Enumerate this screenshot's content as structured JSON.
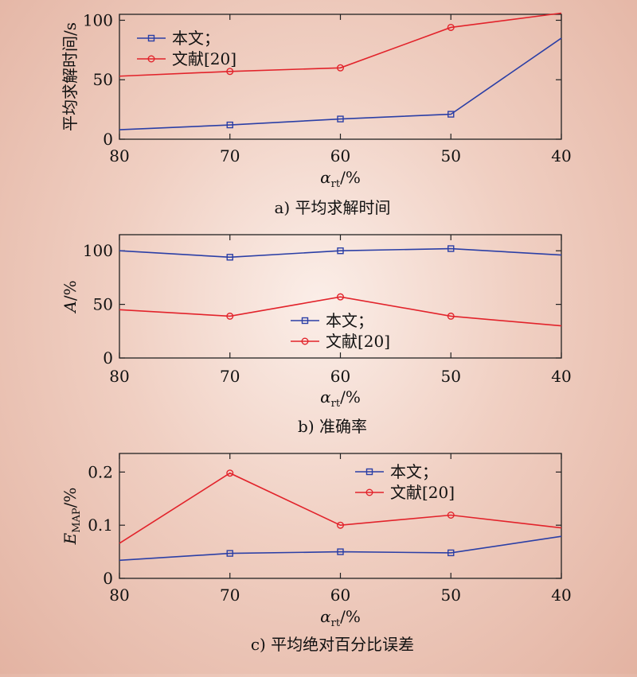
{
  "chart_data": [
    {
      "type": "line",
      "ylabel": "平均求解时间/s",
      "xlabel_base": "α",
      "xlabel_sub": "rt",
      "xlabel_unit": "/%",
      "caption": "a) 平均求解时间",
      "x": [
        80,
        70,
        60,
        50,
        40
      ],
      "xlim": [
        80,
        40
      ],
      "ylim": [
        0,
        105
      ],
      "yticks": [
        0,
        50,
        100
      ],
      "legend_position": "top-left",
      "series": [
        {
          "name": "本文；",
          "color": "#2b3fa6",
          "marker": "square",
          "values": [
            8,
            12,
            17,
            21,
            85
          ]
        },
        {
          "name": "文献[20]",
          "color": "#e2232b",
          "marker": "circle",
          "values": [
            53,
            57,
            60,
            94,
            106
          ]
        }
      ]
    },
    {
      "type": "line",
      "ylabel_base": "A",
      "ylabel_unit": "/%",
      "xlabel_base": "α",
      "xlabel_sub": "rt",
      "xlabel_unit": "/%",
      "caption": "b) 准确率",
      "x": [
        80,
        70,
        60,
        50,
        40
      ],
      "xlim": [
        80,
        40
      ],
      "ylim": [
        0,
        115
      ],
      "yticks": [
        0,
        50,
        100
      ],
      "legend_position": "center",
      "series": [
        {
          "name": "本文；",
          "color": "#2b3fa6",
          "marker": "square",
          "values": [
            100,
            94,
            100,
            102,
            96
          ]
        },
        {
          "name": "文献[20]",
          "color": "#e2232b",
          "marker": "circle",
          "values": [
            45,
            39,
            57,
            39,
            30
          ]
        }
      ]
    },
    {
      "type": "line",
      "ylabel_base": "E",
      "ylabel_sub": "MAP",
      "ylabel_unit": "/%",
      "xlabel_base": "α",
      "xlabel_sub": "rt",
      "xlabel_unit": "/%",
      "caption": "c) 平均绝对百分比误差",
      "x": [
        80,
        70,
        60,
        50,
        40
      ],
      "xlim": [
        80,
        40
      ],
      "ylim": [
        0,
        0.235
      ],
      "yticks": [
        0,
        0.1,
        0.2
      ],
      "ytick_labels": [
        "0",
        "0.1",
        "0.2"
      ],
      "legend_position": "top-right",
      "series": [
        {
          "name": "本文；",
          "color": "#2b3fa6",
          "marker": "square",
          "values": [
            0.034,
            0.047,
            0.05,
            0.048,
            0.079
          ]
        },
        {
          "name": "文献[20]",
          "color": "#e2232b",
          "marker": "circle",
          "values": [
            0.066,
            0.198,
            0.1,
            0.119,
            0.095
          ]
        }
      ]
    }
  ]
}
